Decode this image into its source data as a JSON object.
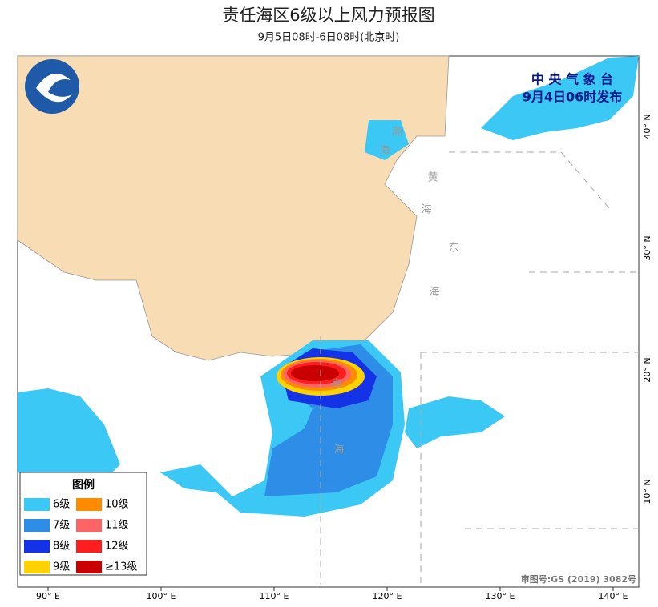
{
  "header": {
    "title": "责任海区6级以上风力预报图",
    "subtitle": "9月5日08时-6日08时(北京时)"
  },
  "issuer": {
    "name": "中 央 气 象 台",
    "time": "9月4日06时发布"
  },
  "legend": {
    "title": "图例",
    "items": [
      {
        "label": "6级",
        "color": "#3cc8f5"
      },
      {
        "label": "10级",
        "color": "#ff8c00"
      },
      {
        "label": "7级",
        "color": "#2e8de6"
      },
      {
        "label": "11级",
        "color": "#ff6464"
      },
      {
        "label": "8级",
        "color": "#1432e6"
      },
      {
        "label": "12级",
        "color": "#ff1e1e"
      },
      {
        "label": "9级",
        "color": "#ffd200"
      },
      {
        "label": "≥13级",
        "color": "#c80000"
      }
    ]
  },
  "axes": {
    "longitudes": [
      "90° E",
      "100° E",
      "110° E",
      "120° E",
      "130° E",
      "140° E"
    ],
    "latitudes": [
      "40° N",
      "30° N",
      "20° N",
      "10° N"
    ]
  },
  "sea_labels": [
    "渤",
    "海",
    "黄",
    "海",
    "东",
    "海",
    "南",
    "海"
  ],
  "approval": "审图号:GS (2019) 3082号"
}
